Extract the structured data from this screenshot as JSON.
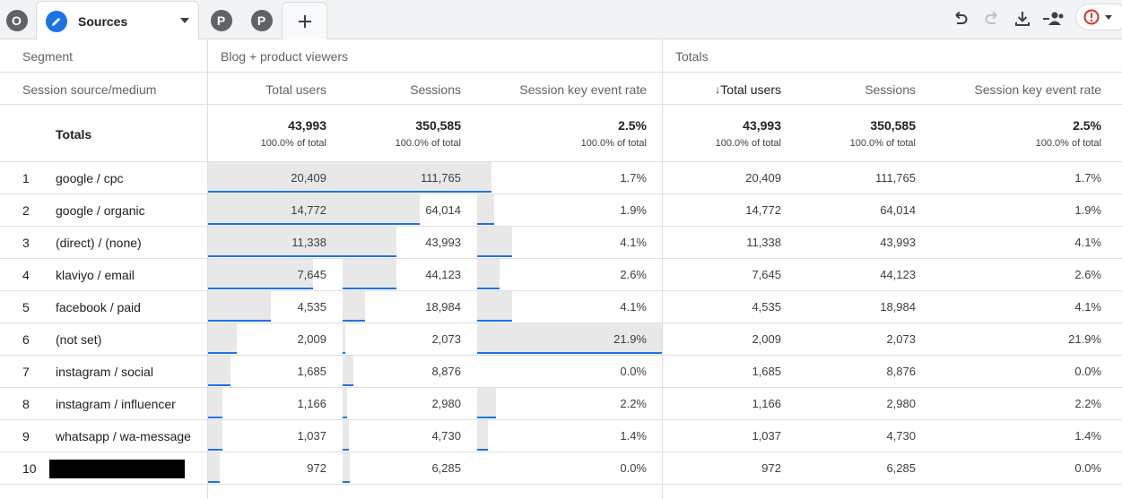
{
  "tabs": {
    "pre": [
      "O"
    ],
    "active": {
      "label": "Sources"
    },
    "post": [
      "P",
      "P"
    ],
    "add_label": "+"
  },
  "toolbar": {
    "icons": [
      "undo-icon",
      "redo-icon",
      "download-icon",
      "share-users-icon",
      "alert-icon"
    ],
    "alert_color": "#d93025",
    "accent_color": "#1a73e8"
  },
  "table": {
    "segment_label": "Segment",
    "segments": [
      "Blog + product viewers",
      "Totals"
    ],
    "dimension_label": "Session source/medium",
    "columns": [
      {
        "label": "Total users",
        "sorted": false
      },
      {
        "label": "Sessions",
        "sorted": false
      },
      {
        "label": "Session key event rate",
        "sorted": false
      },
      {
        "label": "Total users",
        "sorted": true,
        "sort_icon": "↓"
      },
      {
        "label": "Sessions",
        "sorted": false
      },
      {
        "label": "Session key event rate",
        "sorted": false
      }
    ],
    "totals": {
      "label": "Totals",
      "cells": [
        {
          "value": "43,993",
          "pct": "100.0% of total"
        },
        {
          "value": "350,585",
          "pct": "100.0% of total"
        },
        {
          "value": "2.5%",
          "pct": "100.0% of total"
        },
        {
          "value": "43,993",
          "pct": "100.0% of total"
        },
        {
          "value": "350,585",
          "pct": "100.0% of total"
        },
        {
          "value": "2.5%",
          "pct": "100.0% of total"
        }
      ]
    },
    "rows": [
      {
        "idx": "1",
        "name": "google / cpc",
        "redacted": false,
        "bars": [
          1.0,
          1.0,
          0.0
        ],
        "values": [
          "20,409",
          "111,765",
          "1.7%",
          "20,409",
          "111,765",
          "1.7%"
        ]
      },
      {
        "idx": "2",
        "name": "google / organic",
        "redacted": false,
        "bars": [
          0.72,
          0.52,
          0.09
        ],
        "values": [
          "14,772",
          "64,014",
          "1.9%",
          "14,772",
          "64,014",
          "1.9%"
        ]
      },
      {
        "idx": "3",
        "name": "(direct) / (none)",
        "redacted": false,
        "bars": [
          0.56,
          0.36,
          0.19
        ],
        "values": [
          "11,338",
          "43,993",
          "4.1%",
          "11,338",
          "43,993",
          "4.1%"
        ]
      },
      {
        "idx": "4",
        "name": "klaviyo / email",
        "redacted": false,
        "bars": [
          0.37,
          0.36,
          0.12
        ],
        "values": [
          "7,645",
          "44,123",
          "2.6%",
          "7,645",
          "44,123",
          "2.6%"
        ]
      },
      {
        "idx": "5",
        "name": "facebook / paid",
        "redacted": false,
        "bars": [
          0.22,
          0.15,
          0.19
        ],
        "values": [
          "4,535",
          "18,984",
          "4.1%",
          "4,535",
          "18,984",
          "4.1%"
        ]
      },
      {
        "idx": "6",
        "name": "(not set)",
        "redacted": false,
        "bars": [
          0.1,
          0.02,
          1.0
        ],
        "values": [
          "2,009",
          "2,073",
          "21.9%",
          "2,009",
          "2,073",
          "21.9%"
        ]
      },
      {
        "idx": "7",
        "name": "instagram / social",
        "redacted": false,
        "bars": [
          0.08,
          0.07,
          0.0
        ],
        "values": [
          "1,685",
          "8,876",
          "0.0%",
          "1,685",
          "8,876",
          "0.0%"
        ]
      },
      {
        "idx": "8",
        "name": "instagram / influencer",
        "redacted": false,
        "bars": [
          0.05,
          0.03,
          0.1
        ],
        "values": [
          "1,166",
          "2,980",
          "2.2%",
          "1,166",
          "2,980",
          "2.2%"
        ]
      },
      {
        "idx": "9",
        "name": "whatsapp / wa-message",
        "redacted": false,
        "bars": [
          0.05,
          0.04,
          0.06
        ],
        "values": [
          "1,037",
          "4,730",
          "1.4%",
          "1,037",
          "4,730",
          "1.4%"
        ]
      },
      {
        "idx": "10",
        "name": "",
        "redacted": true,
        "bars": [
          0.04,
          0.05,
          0.0
        ],
        "values": [
          "972",
          "6,285",
          "0.0%",
          "972",
          "6,285",
          "0.0%"
        ]
      }
    ]
  }
}
